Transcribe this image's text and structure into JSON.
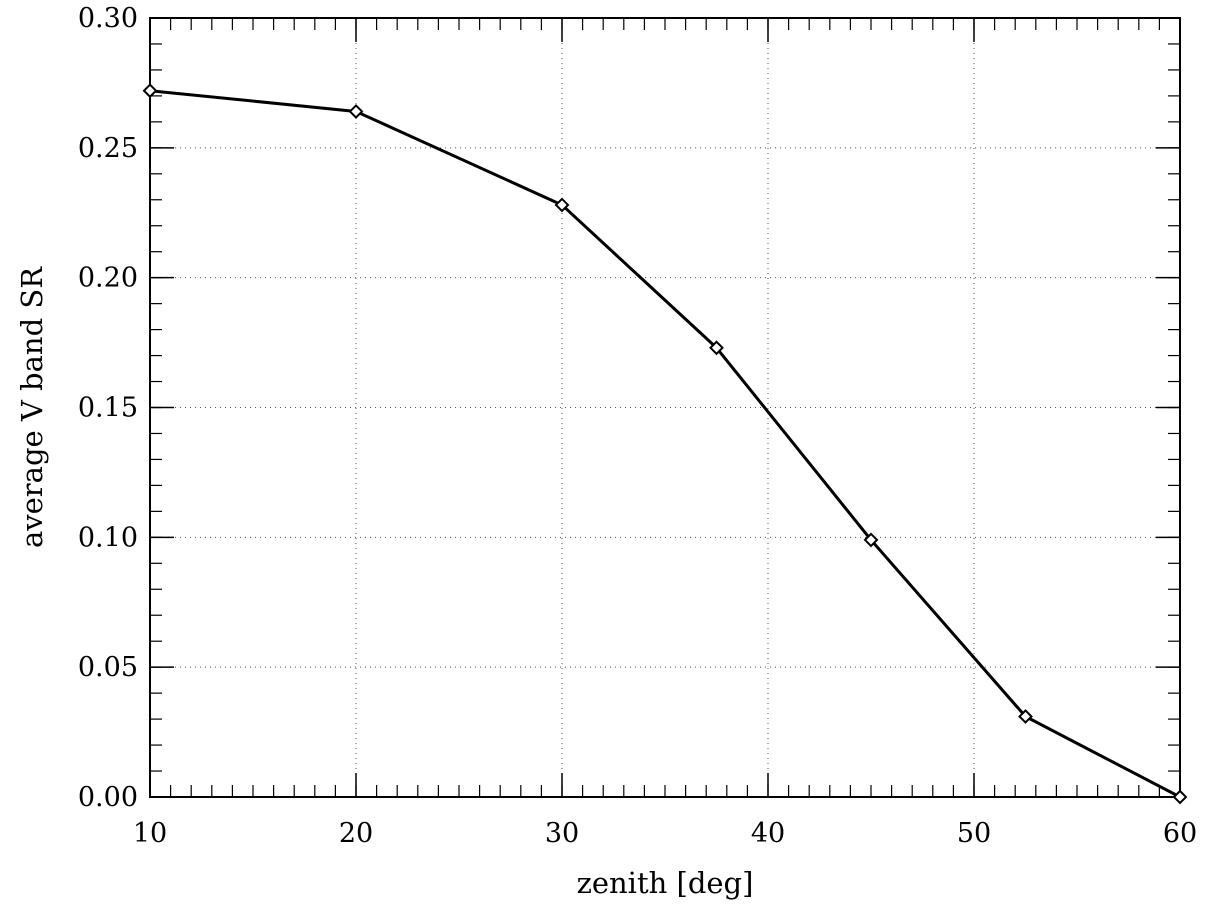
{
  "chart_data": {
    "type": "line",
    "xlabel": "zenith [deg]",
    "ylabel": "average V band SR",
    "xlim": [
      10,
      60
    ],
    "ylim": [
      0,
      0.3
    ],
    "x_ticks": [
      10,
      20,
      30,
      40,
      50,
      60
    ],
    "x_tick_labels": [
      "10",
      "20",
      "30",
      "40",
      "50",
      "60"
    ],
    "y_ticks": [
      0,
      0.05,
      0.1,
      0.15,
      0.2,
      0.25,
      0.3
    ],
    "y_tick_labels": [
      "0.00",
      "0.05",
      "0.10",
      "0.15",
      "0.20",
      "0.25",
      "0.30"
    ],
    "x_minor_step": 1,
    "y_minor_step": 0.01,
    "grid": true,
    "legend": "none",
    "marker": "diamond",
    "line_color": "#000000",
    "series": [
      {
        "x": [
          10,
          20,
          30,
          37.5,
          45,
          52.5,
          60
        ],
        "y": [
          0.272,
          0.264,
          0.228,
          0.173,
          0.099,
          0.031,
          0.0
        ]
      }
    ]
  }
}
